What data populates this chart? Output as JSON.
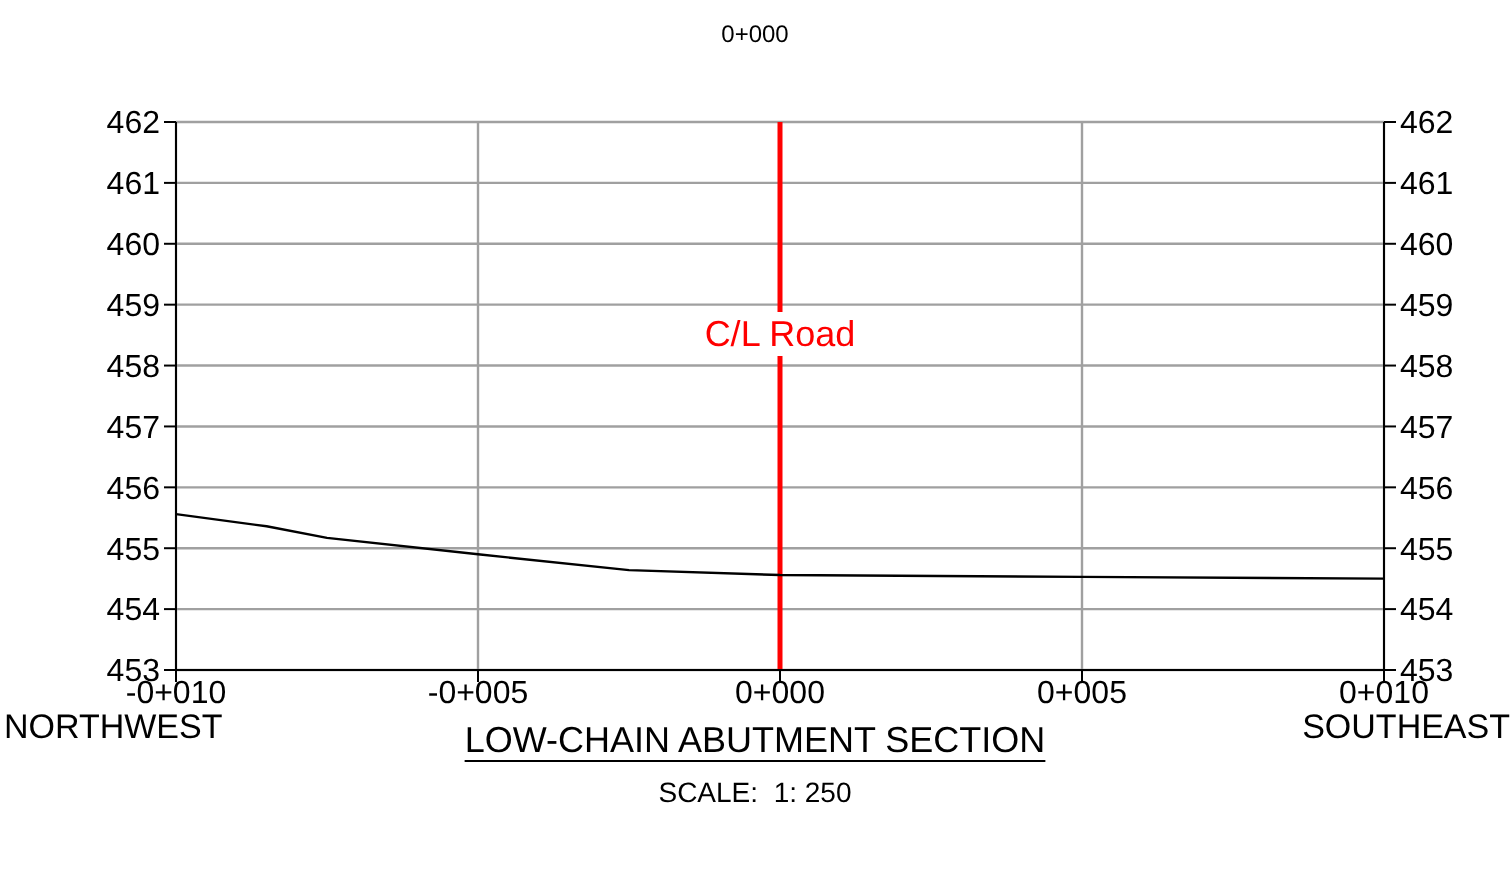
{
  "chart_data": {
    "type": "line",
    "title": "0+000",
    "xlabel": "LOW-CHAIN ABUTMENT SECTION",
    "annotations": [
      "NORTHWEST",
      "SOUTHEAST",
      "SCALE:  1: 250"
    ],
    "categories": [
      "-0+010",
      null,
      null,
      null,
      null,
      null,
      null,
      null,
      null,
      null,
      "-0+005",
      null,
      null,
      null,
      null,
      null,
      null,
      null,
      null,
      null,
      "0+000",
      null,
      null,
      null,
      null,
      null,
      null,
      null,
      null,
      null,
      "0+005",
      null,
      null,
      null,
      null,
      null,
      null,
      null,
      null,
      null,
      "0+010"
    ],
    "series": [
      {
        "color": "#000000",
        "values": [
          455.56,
          null,
          null,
          455.36,
          null,
          455.17,
          null,
          null,
          null,
          null,
          454.9,
          null,
          null,
          null,
          null,
          454.64,
          null,
          null,
          null,
          null,
          454.56,
          null,
          null,
          null,
          null,
          null,
          null,
          null,
          null,
          null,
          454.53,
          null,
          null,
          null,
          null,
          null,
          null,
          null,
          null,
          null,
          454.5
        ]
      }
    ],
    "ylim": [
      453,
      462
    ],
    "yticks": [
      453,
      454,
      455,
      456,
      457,
      458,
      459,
      460,
      461,
      462
    ],
    "y2lim": [
      453,
      462
    ],
    "y2ticks": [
      453,
      454,
      455,
      456,
      457,
      458,
      459,
      460,
      461,
      462
    ],
    "ref_lines": [
      {
        "axis": "x",
        "value": "0+000",
        "label": "C/L Road",
        "color": "#ff0000"
      }
    ],
    "grid": true,
    "legend": false,
    "marker": "none",
    "line_style": "solid"
  }
}
